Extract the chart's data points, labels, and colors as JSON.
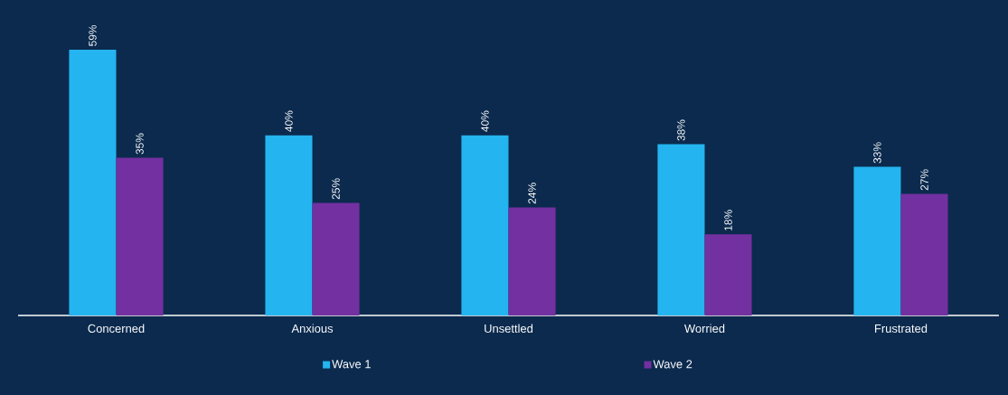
{
  "chart_data": {
    "type": "bar",
    "categories": [
      "Concerned",
      "Anxious",
      "Unsettled",
      "Worried",
      "Frustrated"
    ],
    "series": [
      {
        "name": "Wave 1",
        "color": "#24b4ef",
        "values": [
          59,
          40,
          40,
          38,
          33
        ],
        "value_labels": [
          "59%",
          "40%",
          "40%",
          "38%",
          "33%"
        ]
      },
      {
        "name": "Wave 2",
        "color": "#7330a0",
        "values": [
          35,
          25,
          24,
          18,
          27
        ],
        "value_labels": [
          "35%",
          "25%",
          "24%",
          "18%",
          "27%"
        ]
      }
    ],
    "legend": "bottom",
    "grid": false
  }
}
